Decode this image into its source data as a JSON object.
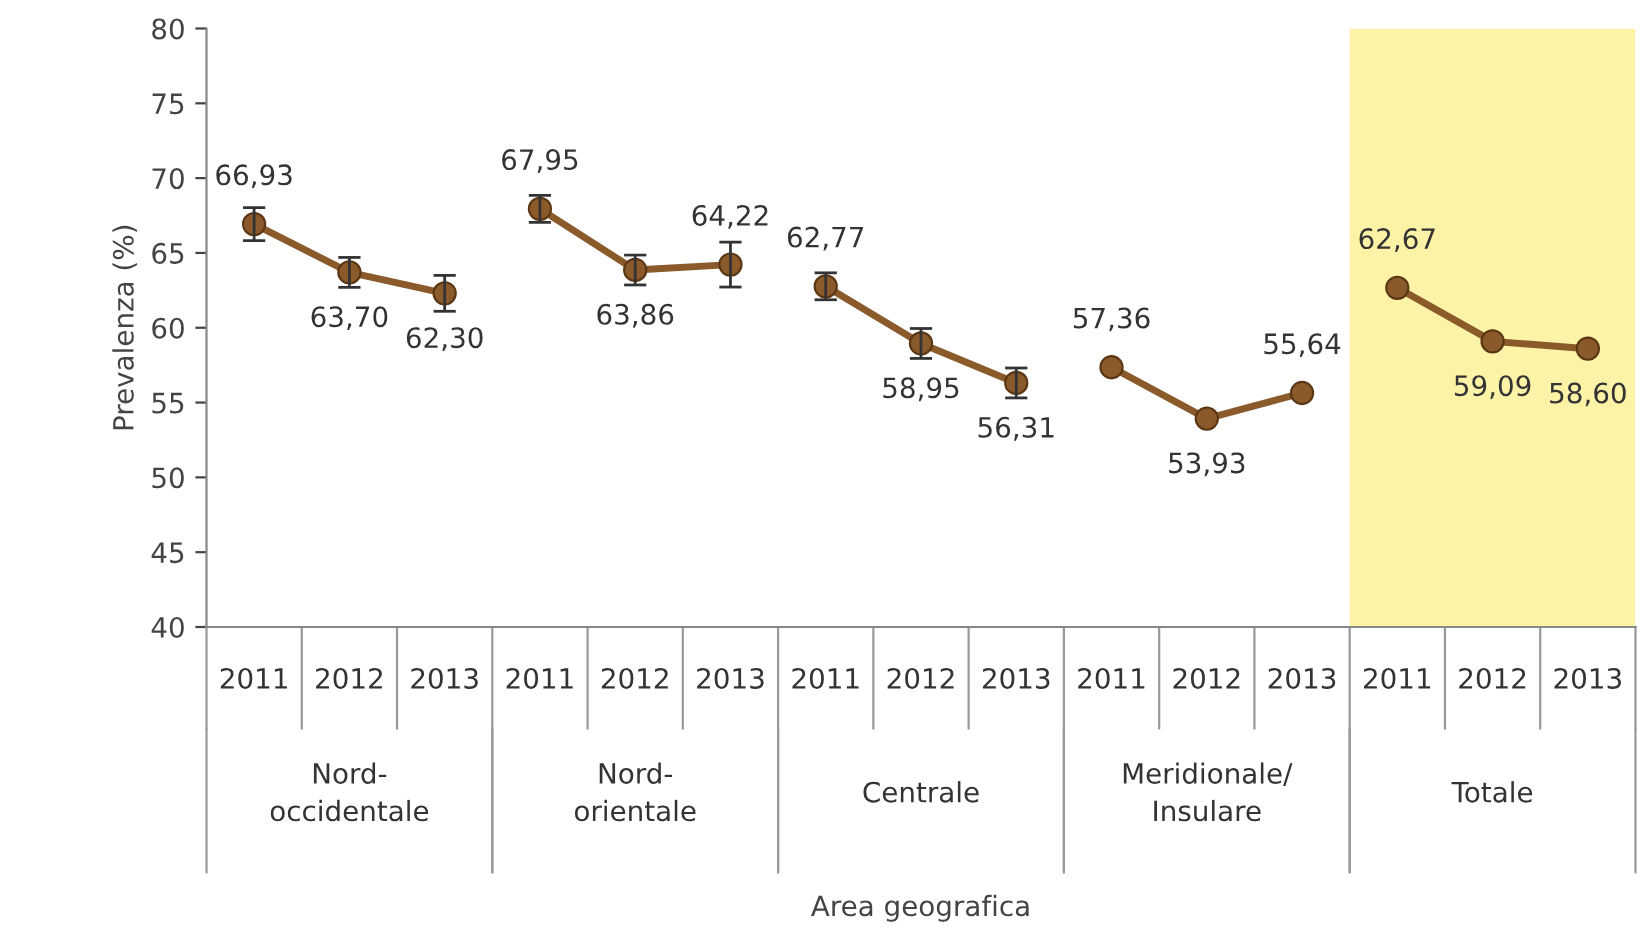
{
  "chart_data": {
    "type": "line",
    "ylabel": "Prevalenza (%)",
    "annotations": [
      "Nord-\noccidentale",
      "Nord-\norientale",
      "Centrale",
      "Meridionale/\nInsulare",
      "Totale",
      "Area geografica"
    ],
    "categories": [
      "2011",
      "2012",
      "2013",
      "2011",
      "2012",
      "2013",
      "2011",
      "2012",
      "2013",
      "2011",
      "2012",
      "2013",
      "2011",
      "2012",
      "2013"
    ],
    "series": [
      {
        "color": "#8b5a2b",
        "values": [
          66.93,
          63.7,
          62.3,
          null,
          null,
          null,
          null,
          null,
          null,
          null,
          null,
          null,
          null,
          null,
          null
        ],
        "errors": [
          1.1,
          1.0,
          1.2,
          null,
          null,
          null,
          null,
          null,
          null,
          null,
          null,
          null,
          null,
          null,
          null
        ],
        "value_labels": [
          "66,93",
          "63,70",
          "62,30",
          null,
          null,
          null,
          null,
          null,
          null,
          null,
          null,
          null,
          null,
          null,
          null
        ]
      },
      {
        "color": "#8b5a2b",
        "values": [
          null,
          null,
          null,
          67.95,
          63.86,
          64.22,
          null,
          null,
          null,
          null,
          null,
          null,
          null,
          null,
          null
        ],
        "errors": [
          null,
          null,
          null,
          0.9,
          1.0,
          1.5,
          null,
          null,
          null,
          null,
          null,
          null,
          null,
          null,
          null
        ],
        "value_labels": [
          null,
          null,
          null,
          "67,95",
          "63,86",
          "64,22",
          null,
          null,
          null,
          null,
          null,
          null,
          null,
          null,
          null
        ]
      },
      {
        "color": "#8b5a2b",
        "values": [
          null,
          null,
          null,
          null,
          null,
          null,
          62.77,
          58.95,
          56.31,
          null,
          null,
          null,
          null,
          null,
          null
        ],
        "errors": [
          null,
          null,
          null,
          null,
          null,
          null,
          0.9,
          1.0,
          1.0,
          null,
          null,
          null,
          null,
          null,
          null
        ],
        "value_labels": [
          null,
          null,
          null,
          null,
          null,
          null,
          "62,77",
          "58,95",
          "56,31",
          null,
          null,
          null,
          null,
          null,
          null
        ]
      },
      {
        "color": "#8b5a2b",
        "values": [
          null,
          null,
          null,
          null,
          null,
          null,
          null,
          null,
          null,
          57.36,
          53.93,
          55.64,
          null,
          null,
          null
        ],
        "value_labels": [
          null,
          null,
          null,
          null,
          null,
          null,
          null,
          null,
          null,
          "57,36",
          "53,93",
          "55,64",
          null,
          null,
          null
        ]
      },
      {
        "color": "#8b5a2b",
        "values": [
          null,
          null,
          null,
          null,
          null,
          null,
          null,
          null,
          null,
          null,
          null,
          null,
          62.67,
          59.09,
          58.6
        ],
        "value_labels": [
          null,
          null,
          null,
          null,
          null,
          null,
          null,
          null,
          null,
          null,
          null,
          null,
          "62,67",
          "59,09",
          "58,60"
        ]
      }
    ],
    "ylim": [
      40,
      80
    ],
    "yticks": [
      40,
      45,
      50,
      55,
      60,
      65,
      70,
      75,
      80
    ],
    "marker": "circle",
    "line_style": "solid",
    "grid": false,
    "legend": false
  }
}
